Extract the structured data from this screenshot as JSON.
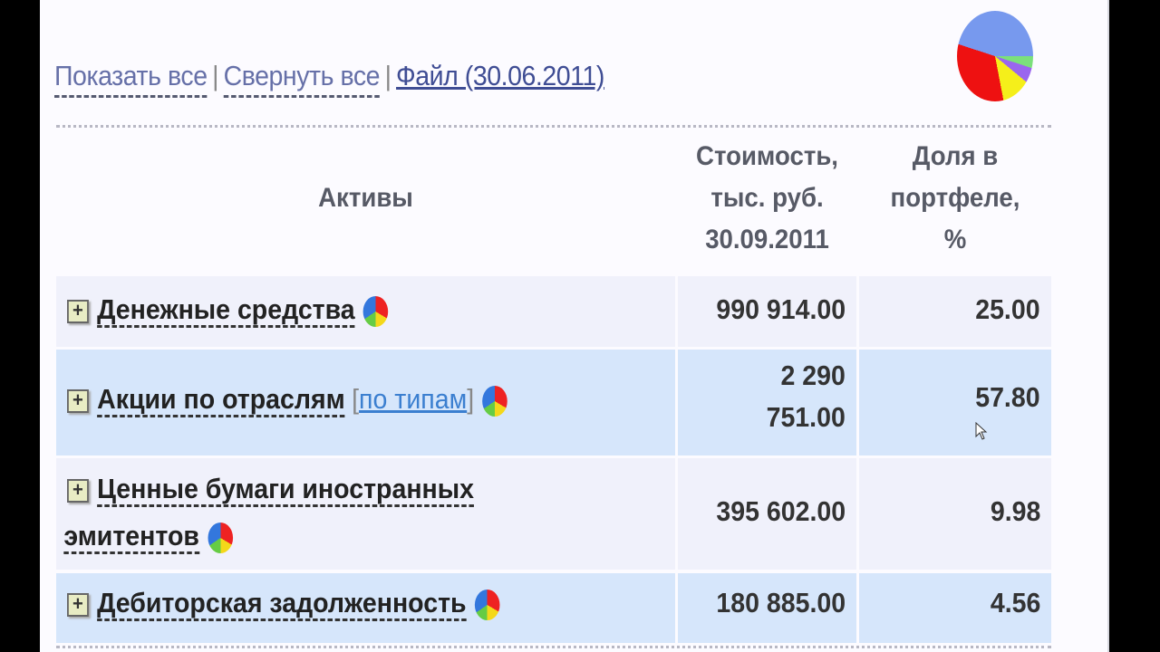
{
  "toolbar": {
    "show_all": "Показать все",
    "collapse_all": "Свернуть все",
    "file": "Файл (30.06.2011)",
    "separator": "|"
  },
  "table": {
    "headers": {
      "assets": "Активы",
      "value": [
        "Стоимость,",
        "тыс. руб.",
        "30.09.2011"
      ],
      "share": [
        "Доля в",
        "портфеле,",
        "%"
      ]
    },
    "rows": [
      {
        "name": "Денежные средства",
        "value": "990 914.00",
        "share": "25.00"
      },
      {
        "name": "Акции по отраслям",
        "sub_link": "по типам",
        "value_lines": [
          "2 290",
          "751.00"
        ],
        "share": "57.80"
      },
      {
        "name_lines": [
          "Ценные бумаги иностранных",
          "эмитентов"
        ],
        "value": "395 602.00",
        "share": "9.98"
      },
      {
        "name": "Дебиторская задолженность",
        "value": "180 885.00",
        "share": "4.56"
      }
    ]
  },
  "icons": {
    "expand": "plus-box-icon",
    "chart": "pie-chart-icon"
  },
  "colors": {
    "row_light": "#f0f1fb",
    "row_blue": "#d6e6fb",
    "link": "#3b7fd0"
  }
}
